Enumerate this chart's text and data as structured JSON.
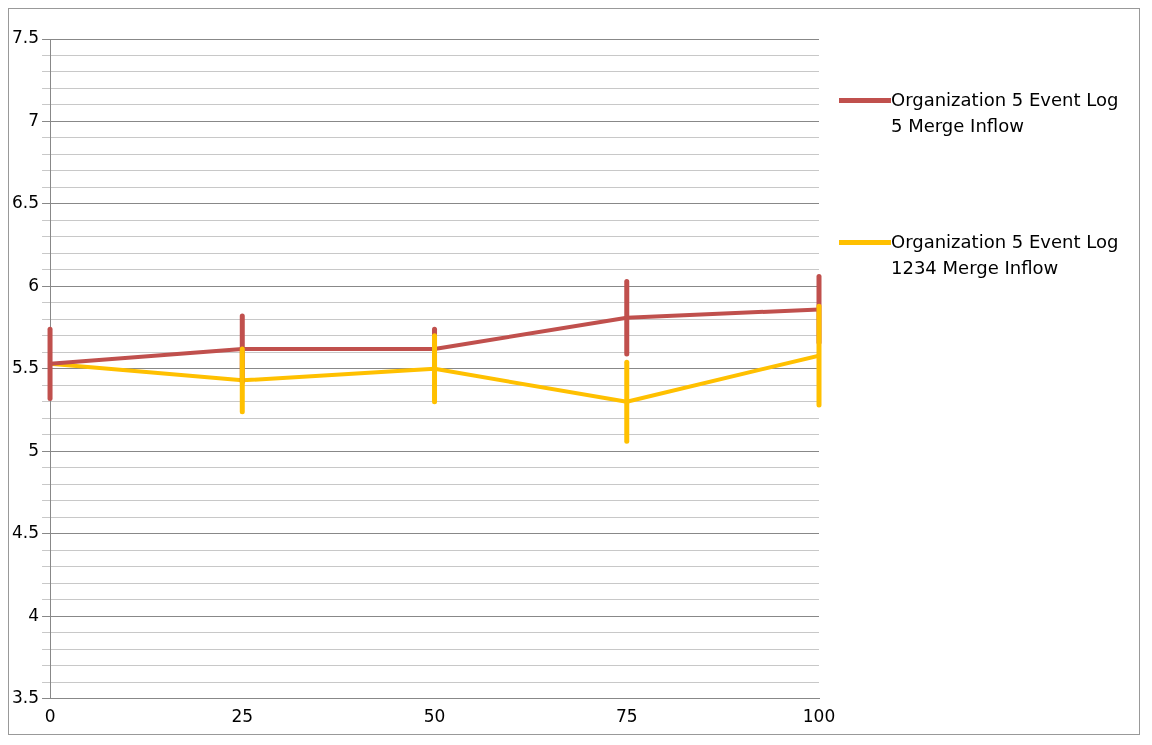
{
  "chart_data": {
    "type": "line",
    "x": [
      0,
      25,
      50,
      75,
      100
    ],
    "series": [
      {
        "name": "Organization 5 Event Log 5 Merge Inflow",
        "color": "#c0504d",
        "values": [
          5.53,
          5.62,
          5.62,
          5.81,
          5.86
        ],
        "errors": [
          0.21,
          0.2,
          0.12,
          0.22,
          0.2
        ]
      },
      {
        "name": "Organization 5 Event Log 1234 Merge Inflow",
        "color": "#ffc000",
        "values": [
          5.53,
          5.43,
          5.5,
          5.3,
          5.58
        ],
        "errors": [
          null,
          0.19,
          0.2,
          0.24,
          0.3
        ]
      }
    ],
    "xlim": [
      0,
      100
    ],
    "xticks": [
      0,
      25,
      50,
      75,
      100
    ],
    "ylim": [
      3.5,
      7.5
    ],
    "yticks": [
      3.5,
      {
        "value": 3.6,
        "label": null
      },
      {
        "value": 3.7,
        "label": null
      },
      {
        "value": 3.8,
        "label": null
      },
      {
        "value": 3.9,
        "label": null
      },
      4,
      {
        "value": 4.1,
        "label": null
      },
      {
        "value": 4.2,
        "label": null
      },
      {
        "value": 4.3,
        "label": null
      },
      {
        "value": 4.4,
        "label": null
      },
      4.5,
      {
        "value": 4.6,
        "label": null
      },
      {
        "value": 4.7,
        "label": null
      },
      {
        "value": 4.8,
        "label": null
      },
      {
        "value": 4.9,
        "label": null
      },
      5,
      {
        "value": 5.1,
        "label": null
      },
      {
        "value": 5.2,
        "label": null
      },
      {
        "value": 5.3,
        "label": null
      },
      {
        "value": 5.4,
        "label": null
      },
      5.5,
      {
        "value": 5.6,
        "label": null
      },
      {
        "value": 5.7,
        "label": null
      },
      {
        "value": 5.8,
        "label": null
      },
      {
        "value": 5.9,
        "label": null
      },
      6,
      {
        "value": 6.1,
        "label": null
      },
      {
        "value": 6.2,
        "label": null
      },
      {
        "value": 6.3,
        "label": null
      },
      {
        "value": 6.4,
        "label": null
      },
      6.5,
      {
        "value": 6.6,
        "label": null
      },
      {
        "value": 6.7,
        "label": null
      },
      {
        "value": 6.8,
        "label": null
      },
      {
        "value": 6.9,
        "label": null
      },
      7,
      {
        "value": 7.1,
        "label": null
      },
      {
        "value": 7.2,
        "label": null
      },
      {
        "value": 7.3,
        "label": null
      },
      {
        "value": 7.4,
        "label": null
      },
      7.5
    ],
    "grid": "y",
    "legend": "right",
    "marker": "none",
    "line_style": "solid"
  }
}
